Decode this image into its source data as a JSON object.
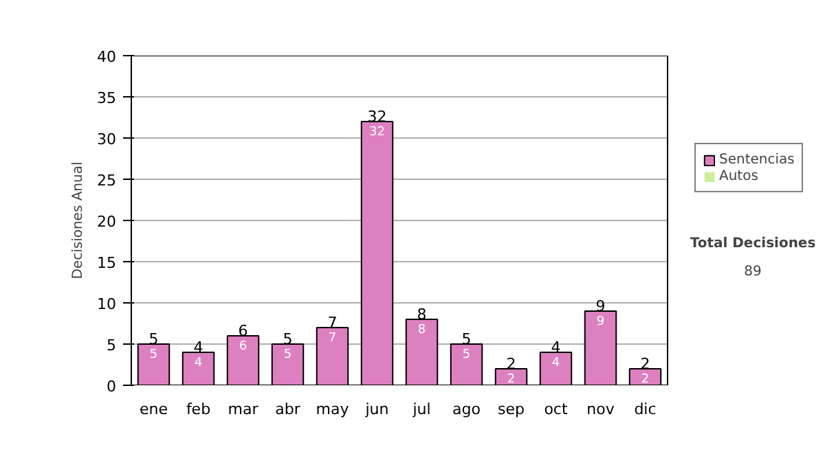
{
  "chart_data": {
    "type": "bar",
    "stacked": true,
    "ylabel": "Decisiones Anual",
    "categories": [
      "ene",
      "feb",
      "mar",
      "abr",
      "may",
      "jun",
      "jul",
      "ago",
      "sep",
      "oct",
      "nov",
      "dic"
    ],
    "series": [
      {
        "name": "Sentencias",
        "color": "#dd80c0",
        "values": [
          5,
          4,
          6,
          5,
          7,
          32,
          8,
          5,
          2,
          4,
          9,
          2
        ],
        "value_labels": [
          "5",
          "4",
          "6",
          "5",
          "7",
          "32",
          "8",
          "5",
          "2",
          "4",
          "9",
          "2"
        ]
      },
      {
        "name": "Autos",
        "color": "#ccee99",
        "values": [
          0,
          0,
          0,
          0,
          0,
          0,
          0,
          0,
          0,
          0,
          0,
          0
        ]
      }
    ],
    "totals": [
      "5",
      "4",
      "6",
      "5",
      "7",
      "32",
      "8",
      "5",
      "2",
      "4",
      "9",
      "2"
    ],
    "ylim": [
      0,
      40
    ],
    "yticks": [
      0,
      5,
      10,
      15,
      20,
      25,
      30,
      35,
      40
    ],
    "grid": "y",
    "legend": "right",
    "annotations": [
      "Total Decisiones",
      "89"
    ]
  }
}
